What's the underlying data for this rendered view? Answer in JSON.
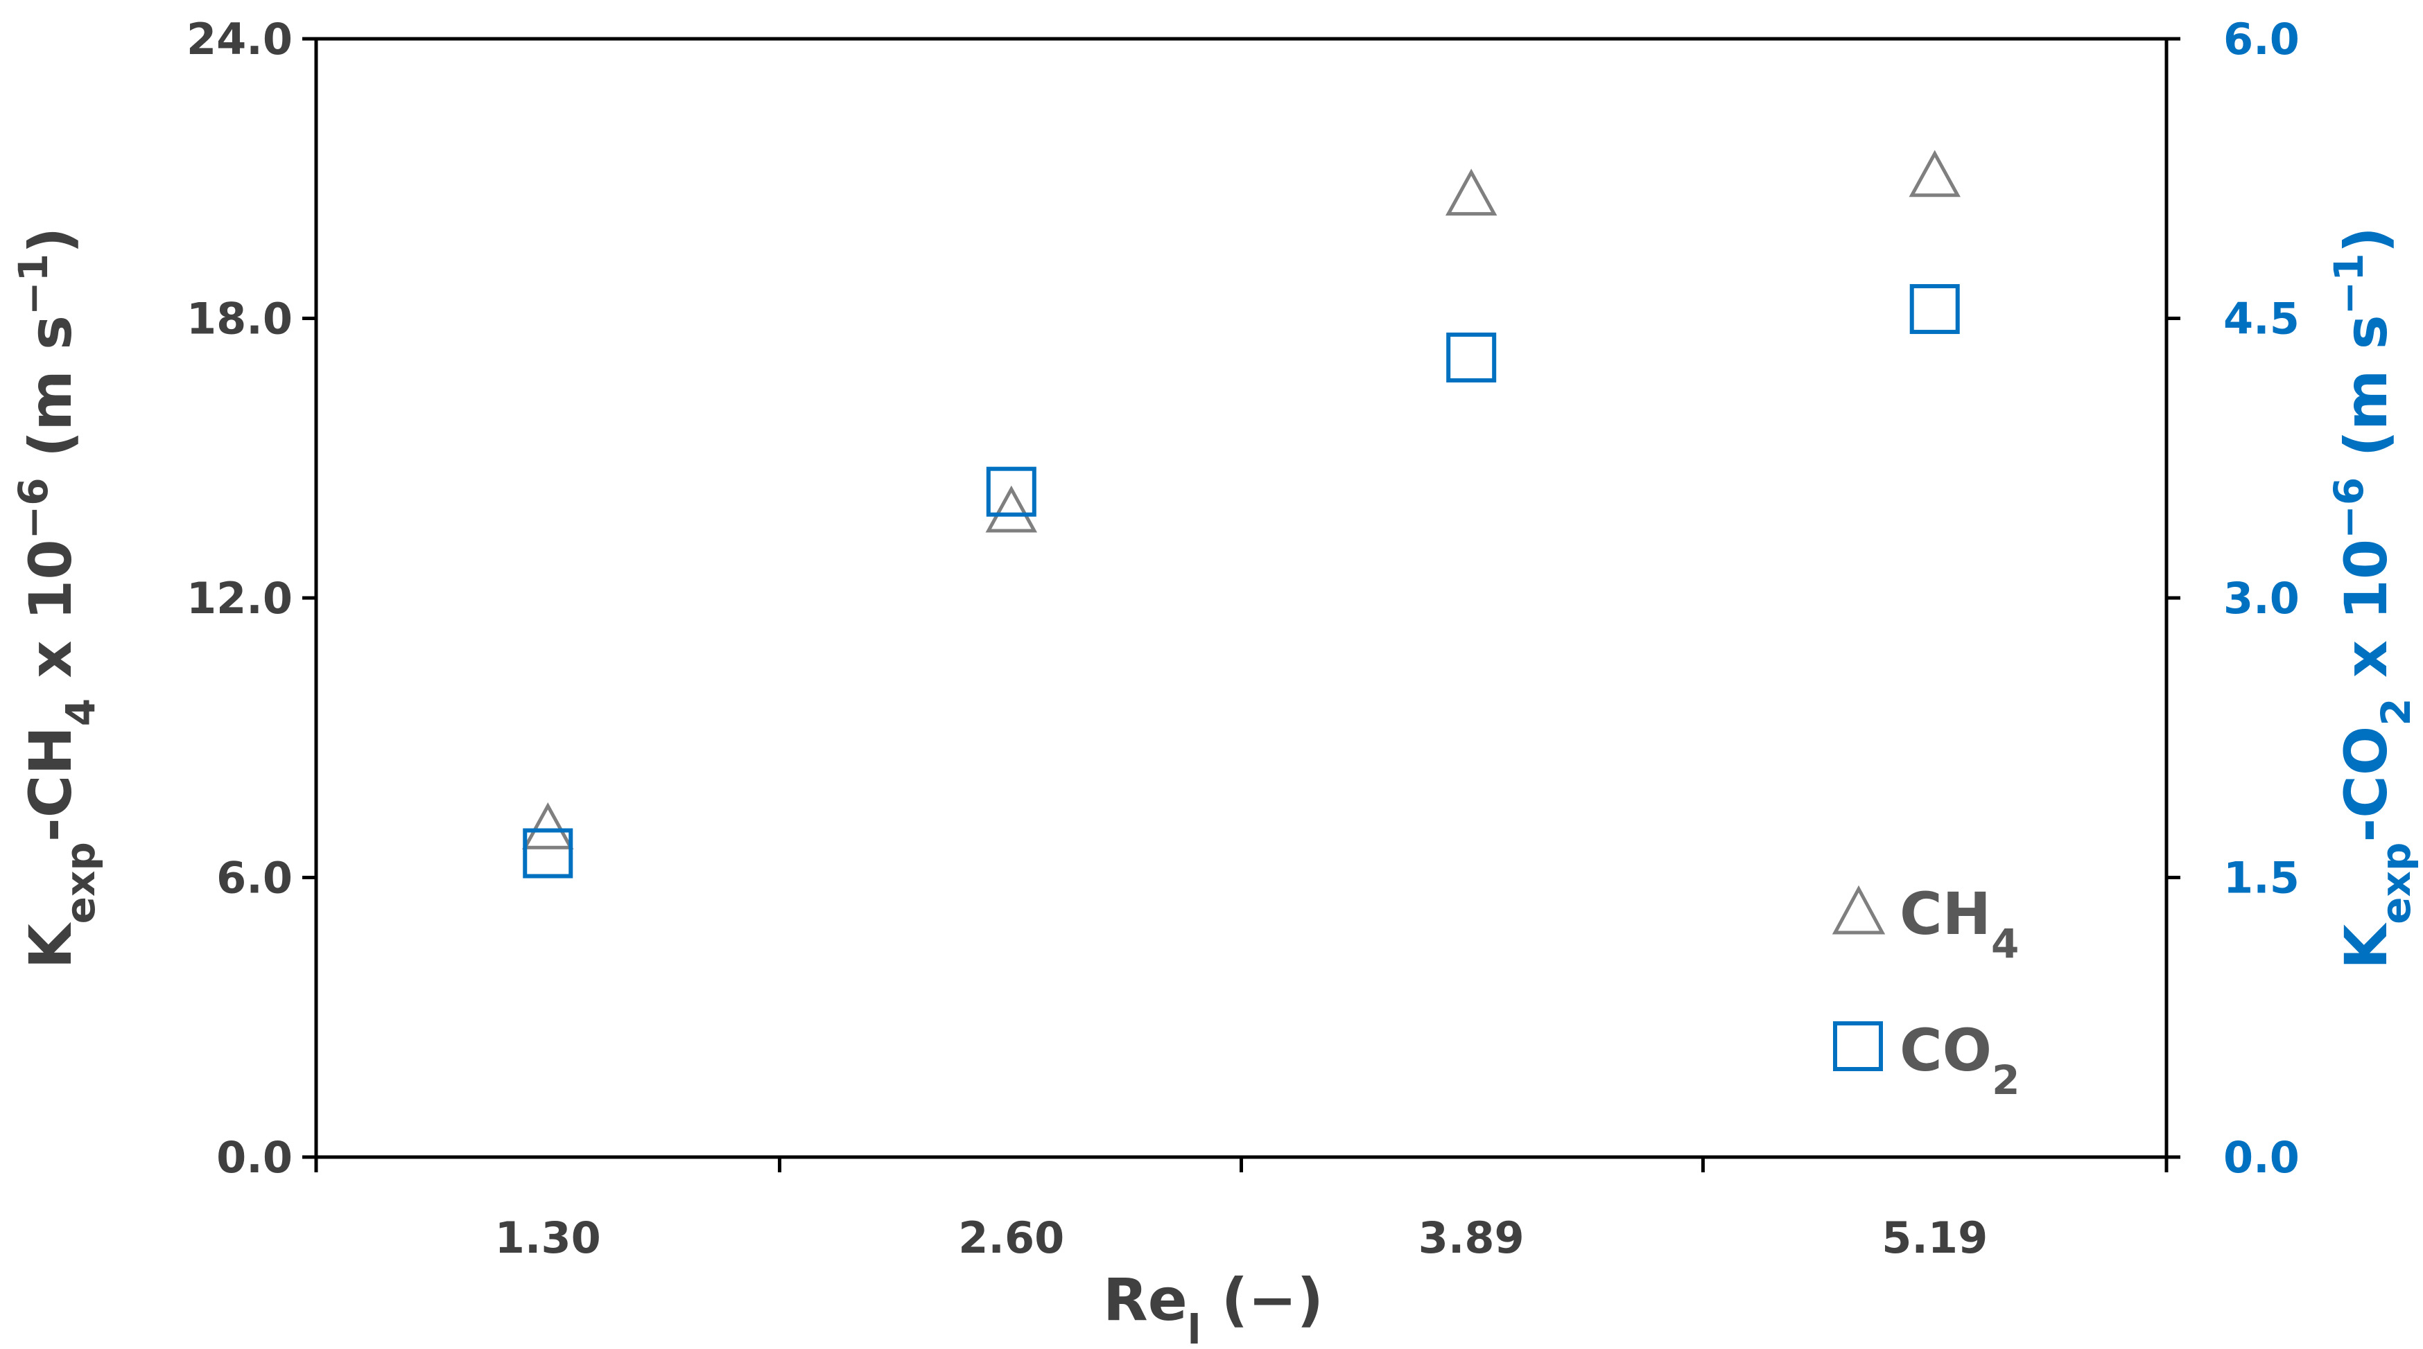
{
  "chart_data": {
    "type": "scatter",
    "title": "",
    "categories": [
      "1.30",
      "2.60",
      "3.89",
      "5.19"
    ],
    "x": [
      1.3,
      2.6,
      3.89,
      5.19
    ],
    "xlabel": {
      "main": "Re",
      "sub": "l",
      "tail": " (−)"
    },
    "ylabel_left": {
      "k": "K",
      "k_sub": "exp",
      "species": "-CH",
      "species_sub": "4",
      "mult": " x 10",
      "exp": "−6",
      "unit": " (m s",
      "unit_exp": "−1",
      "close": ")"
    },
    "ylabel_right": {
      "k": "K",
      "k_sub": "exp",
      "species": "-CO",
      "species_sub": "2",
      "mult": " x 10",
      "exp": "−6",
      "unit": " (m s",
      "unit_exp": "−1",
      "close": ")"
    },
    "ylim_left": [
      0,
      24
    ],
    "ylim_right": [
      0,
      6
    ],
    "yticks_left": [
      "0.0",
      "6.0",
      "12.0",
      "18.0",
      "24.0"
    ],
    "yticks_right": [
      "0.0",
      "1.5",
      "3.0",
      "4.5",
      "6.0"
    ],
    "grid": false,
    "legend_position": "bottom-right",
    "series": [
      {
        "name": "CH",
        "name_sub": "4",
        "axis": "left",
        "marker": "triangle",
        "color": "#7F7F7F",
        "values": [
          7.0,
          13.8,
          20.6,
          21.0
        ]
      },
      {
        "name": "CO",
        "name_sub": "2",
        "axis": "right",
        "marker": "square",
        "color": "#0070C0",
        "values": [
          1.63,
          3.57,
          4.29,
          4.55
        ]
      }
    ]
  }
}
